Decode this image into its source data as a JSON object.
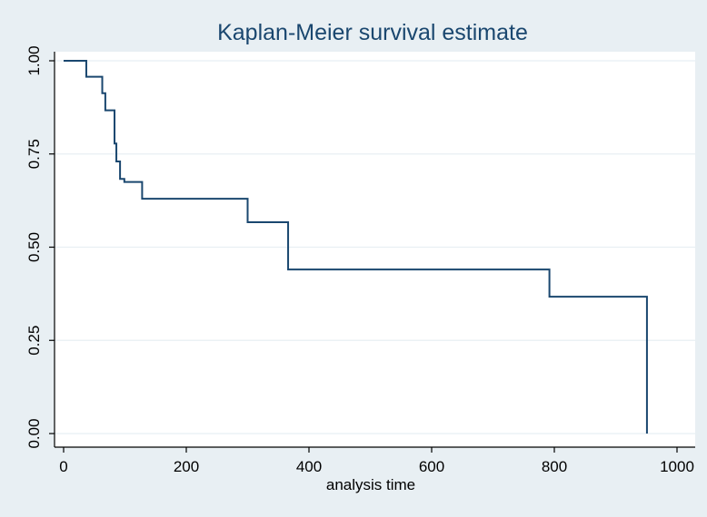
{
  "chart_data": {
    "type": "line",
    "step": true,
    "title": "Kaplan-Meier survival estimate",
    "xlabel": "analysis time",
    "ylabel": "",
    "xlim": [
      0,
      1000
    ],
    "ylim": [
      0,
      1
    ],
    "x_ticks": [
      0,
      200,
      400,
      600,
      800,
      1000
    ],
    "y_ticks": [
      0,
      0.25,
      0.5,
      0.75,
      1
    ],
    "x_tick_labels": [
      "0",
      "200",
      "400",
      "600",
      "800",
      "1000"
    ],
    "y_tick_labels": [
      "0.00",
      "0.25",
      "0.50",
      "0.75",
      "1.00"
    ],
    "grid": true,
    "series": [
      {
        "x": [
          0,
          37,
          63,
          68,
          83,
          86,
          92,
          99,
          128,
          300,
          366,
          792,
          951,
          951
        ],
        "y": [
          1.0,
          0.957,
          0.913,
          0.867,
          0.778,
          0.73,
          0.683,
          0.675,
          0.63,
          0.567,
          0.44,
          0.367,
          0.367,
          0.0
        ]
      }
    ],
    "colors": {
      "line": "#1a476f",
      "background": "#e8eff3",
      "plot_background": "#ffffff",
      "grid": "#e8eff3",
      "text": "#000000",
      "title": "#1a476f"
    }
  }
}
